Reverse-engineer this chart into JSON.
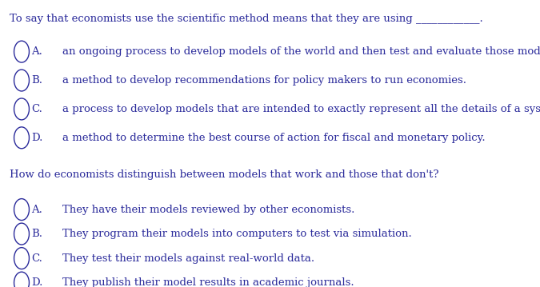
{
  "background_color": "#ffffff",
  "text_color": "#2b2b9b",
  "circle_color": "#2b2b9b",
  "question1": "To say that economists use the scientific method means that they are using ____________.",
  "q1_options": [
    [
      "A.",
      "an ongoing process to develop models of the world and then test and evaluate those models."
    ],
    [
      "B.",
      "a method to develop recommendations for policy makers to run economies."
    ],
    [
      "C.",
      "a process to develop models that are intended to exactly represent all the details of a system."
    ],
    [
      "D.",
      "a method to determine the best course of action for fiscal and monetary policy."
    ]
  ],
  "question2": "How do economists distinguish between models that work and those that don't?",
  "q2_options": [
    [
      "A.",
      "They have their models reviewed by other economists."
    ],
    [
      "B.",
      "They program their models into computers to test via simulation."
    ],
    [
      "C.",
      "They test their models against real-world data."
    ],
    [
      "D.",
      "They publish their model results in academic journals."
    ]
  ],
  "font_size": 9.5,
  "fig_width": 6.75,
  "fig_height": 3.59,
  "dpi": 100
}
